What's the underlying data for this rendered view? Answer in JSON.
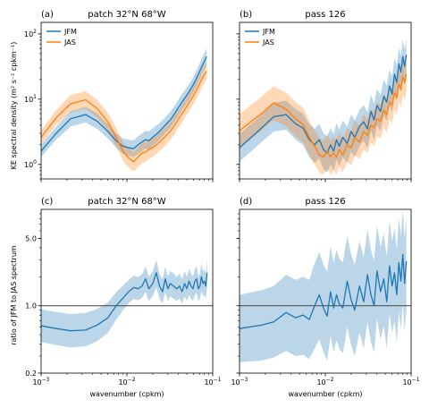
{
  "figure": {
    "ylabel_top": "KE spectral density (m² s⁻² cpkm⁻¹)",
    "ylabel_bottom": "ratio of JFM to JAS spectrum",
    "xlabel": "wavenumber (cpkm)"
  },
  "colors": {
    "jfm": "#1f77b4",
    "jas": "#ff7f0e",
    "reference_line": "#555555"
  },
  "chart_data": [
    {
      "panel": "a",
      "tag": "(a)",
      "title": "patch 32°N 68°W",
      "type": "line",
      "xscale": "log",
      "yscale": "log",
      "xlim": [
        0.001,
        0.1
      ],
      "ylim": [
        0.6,
        150
      ],
      "xticks": [
        {
          "v": 0.001,
          "b": "10",
          "e": "−3"
        },
        {
          "v": 0.01,
          "b": "10",
          "e": "−2"
        },
        {
          "v": 0.1,
          "b": "10",
          "e": "−1"
        }
      ],
      "yticks": [
        {
          "v": 1,
          "b": "10",
          "e": "0"
        },
        {
          "v": 10,
          "b": "10",
          "e": "1"
        },
        {
          "v": 100,
          "b": "10",
          "e": "2"
        }
      ],
      "legend": [
        "JFM",
        "JAS"
      ],
      "legend_position": "top-left",
      "series": [
        {
          "name": "JFM",
          "color": "#1f77b4",
          "x": [
            0.001,
            0.0015,
            0.0022,
            0.0033,
            0.0045,
            0.006,
            0.0075,
            0.009,
            0.0105,
            0.012,
            0.0135,
            0.015,
            0.0165,
            0.018,
            0.02,
            0.024,
            0.028,
            0.032,
            0.036,
            0.04,
            0.045,
            0.05,
            0.055,
            0.06,
            0.065,
            0.07,
            0.075,
            0.08,
            0.085
          ],
          "y": [
            1.6,
            3.0,
            5.0,
            5.8,
            4.6,
            3.2,
            2.3,
            1.9,
            1.8,
            1.75,
            2.0,
            2.2,
            2.4,
            2.3,
            2.6,
            3.2,
            4.0,
            4.8,
            6.0,
            7.5,
            9.5,
            11.5,
            14.0,
            17.0,
            21.0,
            26.0,
            32.0,
            38.0,
            45.0
          ],
          "band_low": [
            1.3,
            2.4,
            3.8,
            4.4,
            3.5,
            2.5,
            1.8,
            1.45,
            1.35,
            1.3,
            1.45,
            1.6,
            1.75,
            1.7,
            1.9,
            2.4,
            3.0,
            3.6,
            4.5,
            5.6,
            7.2,
            8.7,
            10.5,
            12.8,
            15.8,
            19.5,
            24.0,
            28.5,
            33.0
          ],
          "band_high": [
            2.0,
            3.8,
            6.5,
            7.6,
            6.1,
            4.2,
            3.0,
            2.5,
            2.4,
            2.35,
            2.7,
            3.0,
            3.3,
            3.2,
            3.6,
            4.3,
            5.3,
            6.4,
            8.0,
            10.0,
            12.5,
            15.2,
            18.5,
            22.5,
            28.0,
            34.5,
            42.5,
            50.5,
            60.0
          ]
        },
        {
          "name": "JAS",
          "color": "#ff7f0e",
          "x": [
            0.001,
            0.0015,
            0.0022,
            0.0033,
            0.0045,
            0.006,
            0.0075,
            0.009,
            0.0105,
            0.012,
            0.0135,
            0.015,
            0.0165,
            0.018,
            0.02,
            0.024,
            0.028,
            0.032,
            0.036,
            0.04,
            0.045,
            0.05,
            0.055,
            0.06,
            0.065,
            0.07,
            0.075,
            0.08,
            0.085
          ],
          "y": [
            2.6,
            5.2,
            8.5,
            9.8,
            7.2,
            4.5,
            2.6,
            1.6,
            1.25,
            1.1,
            1.3,
            1.5,
            1.55,
            1.7,
            1.8,
            2.2,
            2.7,
            3.2,
            4.0,
            5.0,
            6.3,
            7.8,
            9.5,
            11.5,
            14.0,
            17.0,
            20.5,
            24.0,
            27.0
          ],
          "band_low": [
            2.0,
            4.0,
            6.3,
            7.2,
            5.3,
            3.3,
            1.9,
            1.15,
            0.88,
            0.78,
            0.9,
            1.05,
            1.1,
            1.2,
            1.3,
            1.6,
            1.95,
            2.35,
            2.9,
            3.7,
            4.6,
            5.8,
            7.0,
            8.5,
            10.3,
            12.5,
            15.0,
            17.6,
            19.8
          ],
          "band_high": [
            3.3,
            6.8,
            11.5,
            13.3,
            9.8,
            6.2,
            3.6,
            2.2,
            1.75,
            1.55,
            1.85,
            2.1,
            2.2,
            2.4,
            2.5,
            3.0,
            3.7,
            4.4,
            5.5,
            6.8,
            8.6,
            10.6,
            12.9,
            15.6,
            19.0,
            23.1,
            27.8,
            32.5,
            36.6
          ]
        }
      ]
    },
    {
      "panel": "b",
      "tag": "(b)",
      "title": "pass 126",
      "type": "line",
      "xscale": "log",
      "yscale": "log",
      "xlim": [
        0.001,
        0.1
      ],
      "ylim": [
        0.6,
        150
      ],
      "xticks": [
        {
          "v": 0.001,
          "b": "10",
          "e": "−3"
        },
        {
          "v": 0.01,
          "b": "10",
          "e": "−2"
        },
        {
          "v": 0.1,
          "b": "10",
          "e": "−1"
        }
      ],
      "yticks": [
        {
          "v": 1,
          "b": "10",
          "e": "0"
        },
        {
          "v": 10,
          "b": "10",
          "e": "1"
        },
        {
          "v": 100,
          "b": "10",
          "e": "2"
        }
      ],
      "legend": [
        "JFM",
        "JAS"
      ],
      "legend_position": "top-left",
      "series": [
        {
          "name": "JFM",
          "color": "#1f77b4",
          "x": [
            0.001,
            0.0018,
            0.0025,
            0.0035,
            0.0045,
            0.0055,
            0.0065,
            0.0075,
            0.0085,
            0.0095,
            0.0105,
            0.0115,
            0.0125,
            0.0135,
            0.0145,
            0.016,
            0.018,
            0.02,
            0.022,
            0.025,
            0.028,
            0.031,
            0.034,
            0.037,
            0.04,
            0.044,
            0.048,
            0.052,
            0.056,
            0.06,
            0.064,
            0.068,
            0.072,
            0.076,
            0.08,
            0.084,
            0.088
          ],
          "y": [
            1.8,
            3.6,
            5.4,
            5.8,
            4.2,
            3.6,
            2.4,
            2.0,
            2.4,
            1.7,
            1.5,
            2.0,
            1.6,
            2.4,
            1.9,
            2.6,
            2.1,
            3.2,
            2.6,
            3.8,
            4.5,
            3.5,
            6.5,
            4.8,
            8.0,
            6.5,
            11.0,
            9.0,
            16.0,
            12.0,
            24.0,
            18.0,
            35.0,
            26.0,
            45.0,
            32.0,
            48.0
          ],
          "band_low": [
            1.1,
            2.2,
            3.2,
            3.4,
            2.4,
            2.0,
            1.3,
            1.05,
            1.25,
            0.85,
            0.75,
            1.0,
            0.8,
            1.2,
            0.95,
            1.3,
            1.05,
            1.6,
            1.3,
            1.9,
            2.3,
            1.8,
            3.3,
            2.4,
            4.0,
            3.3,
            5.6,
            4.6,
            8.2,
            6.1,
            12.2,
            9.2,
            17.8,
            13.2,
            22.8,
            16.2,
            24.4
          ],
          "band_high": [
            2.9,
            5.8,
            8.8,
            9.5,
            7.0,
            6.0,
            4.1,
            3.5,
            4.2,
            3.0,
            2.7,
            3.6,
            2.9,
            4.3,
            3.4,
            4.7,
            3.8,
            5.8,
            4.7,
            6.8,
            8.1,
            6.3,
            11.7,
            8.6,
            14.4,
            11.7,
            19.8,
            16.2,
            28.8,
            21.6,
            43.0,
            32.4,
            63.0,
            46.8,
            81.0,
            57.6,
            86.0
          ]
        },
        {
          "name": "JAS",
          "color": "#ff7f0e",
          "x": [
            0.001,
            0.0018,
            0.0025,
            0.0035,
            0.0045,
            0.0055,
            0.0065,
            0.0075,
            0.0085,
            0.0095,
            0.0105,
            0.0115,
            0.0125,
            0.0135,
            0.0145,
            0.016,
            0.018,
            0.02,
            0.022,
            0.025,
            0.028,
            0.031,
            0.034,
            0.037,
            0.04,
            0.044,
            0.048,
            0.052,
            0.056,
            0.06,
            0.064,
            0.068,
            0.072,
            0.076,
            0.08,
            0.084,
            0.088
          ],
          "y": [
            3.3,
            6.0,
            8.8,
            7.0,
            5.0,
            4.1,
            2.6,
            1.9,
            1.4,
            1.3,
            1.6,
            1.3,
            1.5,
            1.3,
            1.7,
            1.4,
            2.0,
            1.8,
            2.6,
            2.2,
            3.2,
            2.8,
            4.0,
            3.6,
            5.0,
            4.6,
            6.8,
            5.8,
            9.0,
            8.0,
            12.5,
            10.5,
            17.0,
            14.0,
            22.0,
            18.0,
            24.0
          ],
          "band_low": [
            1.8,
            3.3,
            4.8,
            3.8,
            2.7,
            2.2,
            1.4,
            1.0,
            0.76,
            0.7,
            0.86,
            0.7,
            0.81,
            0.7,
            0.92,
            0.76,
            1.1,
            0.97,
            1.4,
            1.2,
            1.7,
            1.5,
            2.2,
            1.9,
            2.7,
            2.5,
            3.7,
            3.1,
            4.9,
            4.3,
            6.8,
            5.7,
            9.2,
            7.6,
            11.9,
            9.7,
            13.0
          ],
          "band_high": [
            5.9,
            10.8,
            15.8,
            12.6,
            9.0,
            7.4,
            4.7,
            3.4,
            2.5,
            2.3,
            2.9,
            2.3,
            2.7,
            2.3,
            3.1,
            2.5,
            3.6,
            3.2,
            4.7,
            4.0,
            5.8,
            5.0,
            7.2,
            6.5,
            9.0,
            8.3,
            12.2,
            10.4,
            16.2,
            14.4,
            22.5,
            18.9,
            30.6,
            25.2,
            39.6,
            32.4,
            43.2
          ]
        }
      ]
    },
    {
      "panel": "c",
      "tag": "(c)",
      "title": "patch 32°N 68°W",
      "type": "line",
      "xscale": "log",
      "yscale": "log",
      "xlim": [
        0.001,
        0.1
      ],
      "ylim": [
        0.2,
        10
      ],
      "xticks": [
        {
          "v": 0.001,
          "b": "10",
          "e": "−3"
        },
        {
          "v": 0.01,
          "b": "10",
          "e": "−2"
        },
        {
          "v": 0.1,
          "b": "10",
          "e": "−1"
        }
      ],
      "yticks": [
        {
          "v": 0.2,
          "t": "0.2"
        },
        {
          "v": 1,
          "t": "1.0"
        },
        {
          "v": 5,
          "t": "5.0"
        }
      ],
      "reference_line": 1.0,
      "series": [
        {
          "name": "",
          "color": "#1f77b4",
          "x": [
            0.001,
            0.0015,
            0.0022,
            0.0033,
            0.0045,
            0.006,
            0.0075,
            0.009,
            0.0105,
            0.012,
            0.0135,
            0.015,
            0.0165,
            0.018,
            0.02,
            0.022,
            0.024,
            0.026,
            0.028,
            0.03,
            0.032,
            0.035,
            0.038,
            0.041,
            0.044,
            0.047,
            0.05,
            0.053,
            0.056,
            0.059,
            0.062,
            0.065,
            0.068,
            0.071,
            0.074,
            0.077,
            0.08,
            0.083,
            0.086
          ],
          "y": [
            0.62,
            0.58,
            0.55,
            0.56,
            0.63,
            0.75,
            1.0,
            1.2,
            1.4,
            1.55,
            1.5,
            1.6,
            1.9,
            1.5,
            1.7,
            2.2,
            1.6,
            1.4,
            1.9,
            1.5,
            1.7,
            1.6,
            1.5,
            1.6,
            1.4,
            1.7,
            1.5,
            1.8,
            1.6,
            1.5,
            1.8,
            1.9,
            1.5,
            1.6,
            2.0,
            1.7,
            1.8,
            1.6,
            2.2
          ],
          "band_low": [
            0.42,
            0.39,
            0.37,
            0.38,
            0.43,
            0.52,
            0.72,
            0.9,
            1.06,
            1.18,
            1.14,
            1.2,
            1.4,
            1.12,
            1.26,
            1.55,
            1.18,
            1.05,
            1.38,
            1.12,
            1.25,
            1.19,
            1.12,
            1.19,
            1.05,
            1.25,
            1.12,
            1.3,
            1.18,
            1.12,
            1.3,
            1.35,
            1.12,
            1.18,
            1.42,
            1.25,
            1.3,
            1.18,
            1.52
          ],
          "band_high": [
            0.92,
            0.86,
            0.82,
            0.84,
            0.93,
            1.08,
            1.38,
            1.62,
            1.85,
            2.05,
            1.98,
            2.12,
            2.55,
            2.0,
            2.28,
            3.0,
            2.15,
            1.88,
            2.55,
            2.0,
            2.3,
            2.16,
            2.0,
            2.16,
            1.88,
            2.28,
            2.0,
            2.42,
            2.16,
            2.0,
            2.42,
            2.58,
            2.0,
            2.16,
            2.75,
            2.28,
            2.42,
            2.16,
            3.0
          ]
        }
      ]
    },
    {
      "panel": "d",
      "tag": "(d)",
      "title": "pass 126",
      "type": "line",
      "xscale": "log",
      "yscale": "log",
      "xlim": [
        0.001,
        0.1
      ],
      "ylim": [
        0.2,
        10
      ],
      "xticks": [
        {
          "v": 0.001,
          "b": "10",
          "e": "−3"
        },
        {
          "v": 0.01,
          "b": "10",
          "e": "−2"
        },
        {
          "v": 0.1,
          "b": "10",
          "e": "−1"
        }
      ],
      "yticks": [
        {
          "v": 0.2,
          "t": "0.2"
        },
        {
          "v": 1,
          "t": "1.0"
        },
        {
          "v": 5,
          "t": "5.0"
        }
      ],
      "reference_line": 1.0,
      "series": [
        {
          "name": "",
          "color": "#1f77b4",
          "x": [
            0.001,
            0.0018,
            0.0025,
            0.0035,
            0.0045,
            0.0055,
            0.0065,
            0.0075,
            0.0085,
            0.0095,
            0.0105,
            0.0115,
            0.0125,
            0.0135,
            0.0145,
            0.016,
            0.018,
            0.02,
            0.022,
            0.025,
            0.028,
            0.031,
            0.034,
            0.037,
            0.04,
            0.044,
            0.048,
            0.052,
            0.056,
            0.06,
            0.064,
            0.068,
            0.072,
            0.076,
            0.08,
            0.084,
            0.088
          ],
          "y": [
            0.58,
            0.63,
            0.68,
            0.85,
            0.75,
            0.8,
            0.72,
            1.0,
            1.3,
            0.95,
            0.78,
            1.4,
            0.95,
            1.3,
            1.05,
            0.95,
            1.8,
            1.15,
            0.9,
            1.6,
            1.1,
            2.1,
            1.3,
            1.0,
            2.3,
            1.4,
            1.9,
            1.1,
            2.6,
            1.6,
            2.2,
            1.3,
            2.8,
            1.8,
            3.4,
            1.7,
            2.9
          ],
          "band_low": [
            0.26,
            0.27,
            0.29,
            0.34,
            0.3,
            0.31,
            0.28,
            0.36,
            0.45,
            0.33,
            0.27,
            0.48,
            0.33,
            0.44,
            0.36,
            0.32,
            0.6,
            0.39,
            0.3,
            0.53,
            0.36,
            0.68,
            0.42,
            0.33,
            0.74,
            0.45,
            0.61,
            0.36,
            0.83,
            0.52,
            0.7,
            0.42,
            0.89,
            0.57,
            1.08,
            0.54,
            0.92
          ],
          "band_high": [
            1.3,
            1.45,
            1.6,
            2.1,
            1.85,
            2.0,
            1.85,
            2.75,
            3.6,
            2.7,
            2.25,
            4.1,
            2.8,
            3.85,
            3.1,
            2.8,
            5.3,
            3.4,
            2.65,
            4.7,
            3.2,
            6.2,
            3.8,
            2.95,
            6.8,
            4.1,
            5.6,
            3.2,
            7.6,
            4.7,
            6.4,
            3.8,
            8.2,
            5.3,
            9.8,
            5.0,
            8.5
          ]
        }
      ]
    }
  ]
}
